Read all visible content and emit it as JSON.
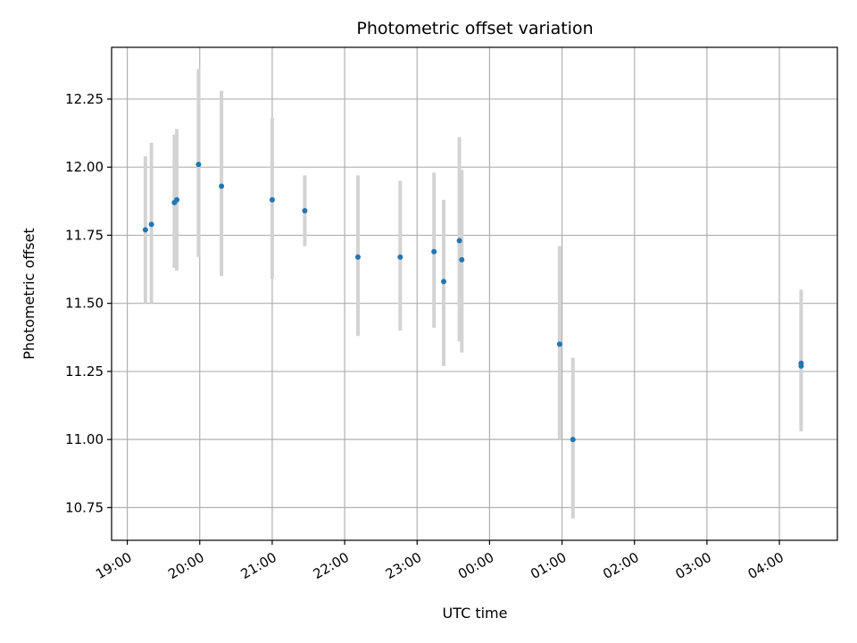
{
  "chart_data": {
    "type": "scatter",
    "title": "Photometric offset variation",
    "xlabel": "UTC time",
    "ylabel": "Photometric offset",
    "x_unit": "UTC time (HH:MM), night spanning midnight",
    "x_ticks": [
      "19:00",
      "20:00",
      "21:00",
      "22:00",
      "23:00",
      "00:00",
      "01:00",
      "02:00",
      "03:00",
      "04:00"
    ],
    "y_ticks": [
      "10.75",
      "11.00",
      "11.25",
      "11.50",
      "11.75",
      "12.00",
      "12.25"
    ],
    "xlim": [
      "18:47",
      "04:48"
    ],
    "ylim": [
      10.63,
      12.44
    ],
    "grid": true,
    "colors": {
      "points": "#1f77b4",
      "errorbars": "#d3d3d3",
      "grid": "#b0b0b0"
    },
    "series": [
      {
        "points": [
          {
            "x": "19:15",
            "y": 11.77,
            "ylow": 11.5,
            "yhigh": 12.04
          },
          {
            "x": "19:20",
            "y": 11.79,
            "ylow": 11.5,
            "yhigh": 12.09
          },
          {
            "x": "19:39",
            "y": 11.87,
            "ylow": 11.63,
            "yhigh": 12.12
          },
          {
            "x": "19:41",
            "y": 11.88,
            "ylow": 11.62,
            "yhigh": 12.14
          },
          {
            "x": "19:59",
            "y": 12.01,
            "ylow": 11.67,
            "yhigh": 12.36
          },
          {
            "x": "20:18",
            "y": 11.93,
            "ylow": 11.6,
            "yhigh": 12.28
          },
          {
            "x": "21:00",
            "y": 11.88,
            "ylow": 11.59,
            "yhigh": 12.18
          },
          {
            "x": "21:27",
            "y": 11.84,
            "ylow": 11.71,
            "yhigh": 11.97
          },
          {
            "x": "22:11",
            "y": 11.67,
            "ylow": 11.38,
            "yhigh": 11.97
          },
          {
            "x": "22:46",
            "y": 11.67,
            "ylow": 11.4,
            "yhigh": 11.95
          },
          {
            "x": "23:14",
            "y": 11.69,
            "ylow": 11.41,
            "yhigh": 11.98
          },
          {
            "x": "23:22",
            "y": 11.58,
            "ylow": 11.27,
            "yhigh": 11.88
          },
          {
            "x": "23:35",
            "y": 11.73,
            "ylow": 11.36,
            "yhigh": 12.11
          },
          {
            "x": "23:37",
            "y": 11.66,
            "ylow": 11.32,
            "yhigh": 11.99
          },
          {
            "x": "00:58",
            "y": 11.35,
            "ylow": 11.0,
            "yhigh": 11.71
          },
          {
            "x": "01:09",
            "y": 11.0,
            "ylow": 10.71,
            "yhigh": 11.3
          },
          {
            "x": "04:18",
            "y": 11.28,
            "ylow": 11.03,
            "yhigh": 11.55
          },
          {
            "x": "04:18",
            "y": 11.27,
            "ylow": 11.05,
            "yhigh": 11.5
          }
        ]
      }
    ]
  }
}
